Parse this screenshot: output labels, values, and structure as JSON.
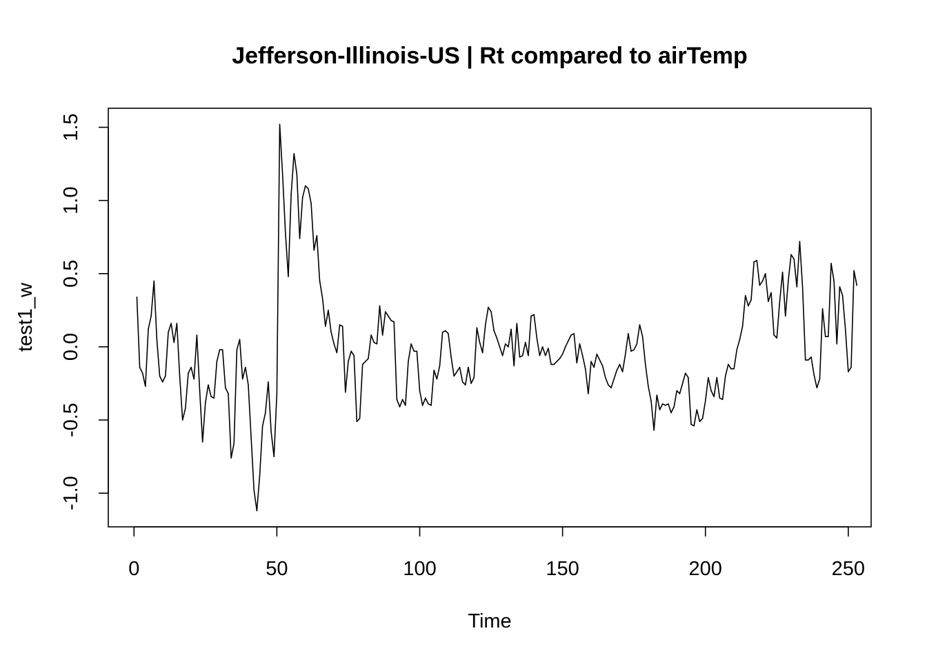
{
  "chart_data": {
    "type": "line",
    "title": "Jefferson-Illinois-US | Rt compared to airTemp",
    "xlabel": "Time",
    "ylabel": "test1_w",
    "xlim": [
      -9,
      258
    ],
    "ylim": [
      -1.23,
      1.63
    ],
    "x_ticks": [
      0,
      50,
      100,
      150,
      200,
      250
    ],
    "x_tick_labels": [
      "0",
      "50",
      "100",
      "150",
      "200",
      "250"
    ],
    "y_ticks": [
      -1.0,
      -0.5,
      0.0,
      0.5,
      1.0,
      1.5
    ],
    "y_tick_labels": [
      "-1.0",
      "-0.5",
      "0.0",
      "0.5",
      "1.0",
      "1.5"
    ],
    "grid": false,
    "legend": "none",
    "line_color": "#000000",
    "series": [
      {
        "x_start": 1,
        "x_step": 1,
        "values": [
          0.34,
          -0.14,
          -0.18,
          -0.27,
          0.12,
          0.21,
          0.45,
          0.05,
          -0.2,
          -0.24,
          -0.2,
          0.1,
          0.16,
          0.03,
          0.16,
          -0.2,
          -0.5,
          -0.42,
          -0.18,
          -0.14,
          -0.22,
          0.08,
          -0.3,
          -0.65,
          -0.38,
          -0.26,
          -0.34,
          -0.35,
          -0.1,
          -0.02,
          -0.02,
          -0.28,
          -0.32,
          -0.76,
          -0.66,
          -0.02,
          0.05,
          -0.22,
          -0.14,
          -0.26,
          -0.62,
          -0.98,
          -1.12,
          -0.88,
          -0.54,
          -0.45,
          -0.24,
          -0.58,
          -0.75,
          -0.32,
          1.52,
          1.18,
          0.78,
          0.48,
          1.04,
          1.32,
          1.18,
          0.74,
          1.02,
          1.1,
          1.08,
          0.98,
          0.66,
          0.76,
          0.45,
          0.33,
          0.14,
          0.25,
          0.1,
          0.02,
          -0.04,
          0.15,
          0.14,
          -0.31,
          -0.1,
          -0.03,
          -0.06,
          -0.51,
          -0.49,
          -0.12,
          -0.1,
          -0.08,
          0.08,
          0.03,
          0.02,
          0.28,
          0.08,
          0.24,
          0.21,
          0.18,
          0.17,
          -0.36,
          -0.41,
          -0.36,
          -0.4,
          -0.1,
          0.02,
          -0.03,
          -0.03,
          -0.3,
          -0.4,
          -0.35,
          -0.39,
          -0.4,
          -0.16,
          -0.22,
          -0.13,
          0.1,
          0.11,
          0.09,
          -0.07,
          -0.2,
          -0.17,
          -0.14,
          -0.24,
          -0.26,
          -0.14,
          -0.25,
          -0.21,
          0.13,
          0.03,
          -0.04,
          0.15,
          0.27,
          0.24,
          0.11,
          0.06,
          0.0,
          -0.06,
          0.02,
          0.0,
          0.12,
          -0.13,
          0.16,
          -0.07,
          -0.06,
          0.03,
          -0.06,
          0.21,
          0.22,
          0.06,
          -0.06,
          0.0,
          -0.06,
          -0.01,
          -0.12,
          -0.12,
          -0.1,
          -0.08,
          -0.05,
          0.0,
          0.04,
          0.08,
          0.09,
          -0.11,
          0.02,
          -0.06,
          -0.15,
          -0.32,
          -0.1,
          -0.14,
          -0.05,
          -0.09,
          -0.13,
          -0.21,
          -0.26,
          -0.28,
          -0.22,
          -0.16,
          -0.12,
          -0.17,
          -0.05,
          0.09,
          -0.03,
          -0.02,
          0.02,
          0.15,
          0.07,
          -0.12,
          -0.27,
          -0.37,
          -0.57,
          -0.33,
          -0.43,
          -0.39,
          -0.4,
          -0.39,
          -0.45,
          -0.41,
          -0.3,
          -0.32,
          -0.25,
          -0.18,
          -0.21,
          -0.53,
          -0.54,
          -0.43,
          -0.51,
          -0.49,
          -0.37,
          -0.21,
          -0.3,
          -0.34,
          -0.21,
          -0.35,
          -0.36,
          -0.2,
          -0.12,
          -0.15,
          -0.15,
          -0.02,
          0.05,
          0.14,
          0.35,
          0.28,
          0.32,
          0.58,
          0.59,
          0.42,
          0.45,
          0.5,
          0.31,
          0.37,
          0.08,
          0.06,
          0.31,
          0.51,
          0.21,
          0.45,
          0.63,
          0.6,
          0.41,
          0.72,
          0.41,
          -0.09,
          -0.09,
          -0.07,
          -0.19,
          -0.28,
          -0.22,
          0.26,
          0.07,
          0.07,
          0.57,
          0.45,
          0.02,
          0.41,
          0.35,
          0.12,
          -0.17,
          -0.14,
          0.52,
          0.42
        ]
      }
    ]
  }
}
